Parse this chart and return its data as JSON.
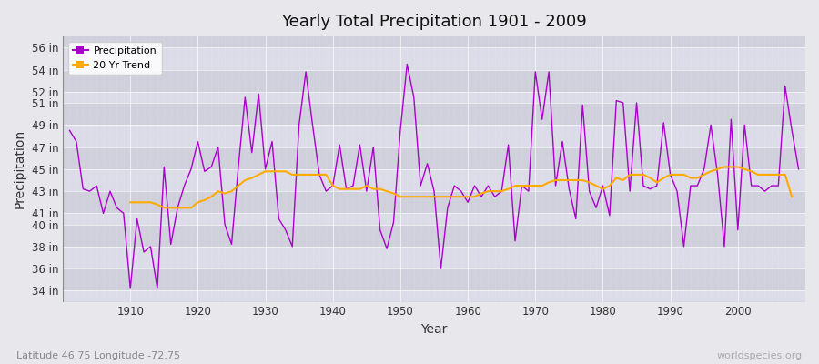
{
  "title": "Yearly Total Precipitation 1901 - 2009",
  "xlabel": "Year",
  "ylabel": "Precipitation",
  "watermark": "worldspecies.org",
  "subtitle": "Latitude 46.75 Longitude -72.75",
  "outer_bg": "#e8e8ec",
  "plot_bg_light": "#dcdce8",
  "plot_bg_dark": "#d0d0dc",
  "precip_color": "#aa00cc",
  "trend_color": "#ffaa00",
  "years": [
    1901,
    1902,
    1903,
    1904,
    1905,
    1906,
    1907,
    1908,
    1909,
    1910,
    1911,
    1912,
    1913,
    1914,
    1915,
    1916,
    1917,
    1918,
    1919,
    1920,
    1921,
    1922,
    1923,
    1924,
    1925,
    1926,
    1927,
    1928,
    1929,
    1930,
    1931,
    1932,
    1933,
    1934,
    1935,
    1936,
    1937,
    1938,
    1939,
    1940,
    1941,
    1942,
    1943,
    1944,
    1945,
    1946,
    1947,
    1948,
    1949,
    1950,
    1951,
    1952,
    1953,
    1954,
    1955,
    1956,
    1957,
    1958,
    1959,
    1960,
    1961,
    1962,
    1963,
    1964,
    1965,
    1966,
    1967,
    1968,
    1969,
    1970,
    1971,
    1972,
    1973,
    1974,
    1975,
    1976,
    1977,
    1978,
    1979,
    1980,
    1981,
    1982,
    1983,
    1984,
    1985,
    1986,
    1987,
    1988,
    1989,
    1990,
    1991,
    1992,
    1993,
    1994,
    1995,
    1996,
    1997,
    1998,
    1999,
    2000,
    2001,
    2002,
    2003,
    2004,
    2005,
    2006,
    2007,
    2008,
    2009
  ],
  "precip": [
    48.5,
    47.5,
    43.2,
    43.0,
    43.5,
    41.0,
    43.0,
    41.5,
    41.0,
    34.2,
    40.5,
    37.5,
    38.0,
    34.2,
    45.2,
    38.2,
    41.5,
    43.5,
    45.0,
    47.5,
    44.8,
    45.2,
    47.0,
    40.0,
    38.2,
    45.2,
    51.5,
    46.5,
    51.8,
    45.0,
    47.5,
    40.5,
    39.5,
    38.0,
    49.0,
    53.8,
    49.0,
    44.5,
    43.0,
    43.5,
    47.2,
    43.2,
    43.5,
    47.2,
    43.0,
    47.0,
    39.5,
    37.8,
    40.2,
    48.5,
    54.5,
    51.5,
    43.5,
    45.5,
    43.0,
    36.0,
    41.5,
    43.5,
    43.0,
    42.0,
    43.5,
    42.5,
    43.5,
    42.5,
    43.0,
    47.2,
    38.5,
    43.5,
    43.0,
    53.8,
    49.5,
    53.8,
    43.5,
    47.5,
    43.2,
    40.5,
    50.8,
    43.0,
    41.5,
    43.5,
    40.8,
    51.2,
    51.0,
    43.0,
    51.0,
    43.5,
    43.2,
    43.5,
    49.2,
    44.5,
    43.0,
    38.0,
    43.5,
    43.5,
    45.0,
    49.0,
    44.5,
    38.0,
    49.5,
    39.5,
    49.0,
    43.5,
    43.5,
    43.0,
    43.5,
    43.5,
    52.5,
    48.5,
    45.0
  ],
  "trend": [
    null,
    null,
    null,
    null,
    null,
    null,
    null,
    null,
    null,
    42.0,
    42.0,
    42.0,
    42.0,
    41.8,
    41.5,
    41.5,
    41.5,
    41.5,
    41.5,
    42.0,
    42.2,
    42.5,
    43.0,
    42.8,
    43.0,
    43.5,
    44.0,
    44.2,
    44.5,
    44.8,
    44.8,
    44.8,
    44.8,
    44.5,
    44.5,
    44.5,
    44.5,
    44.5,
    44.5,
    43.5,
    43.2,
    43.2,
    43.2,
    43.2,
    43.5,
    43.2,
    43.2,
    43.0,
    42.8,
    42.5,
    42.5,
    42.5,
    42.5,
    42.5,
    42.5,
    42.5,
    42.5,
    42.5,
    42.5,
    42.5,
    42.5,
    42.8,
    43.0,
    43.0,
    43.0,
    43.2,
    43.5,
    43.5,
    43.5,
    43.5,
    43.5,
    43.8,
    44.0,
    44.0,
    44.0,
    44.0,
    44.0,
    43.8,
    43.5,
    43.2,
    43.5,
    44.2,
    44.0,
    44.5,
    44.5,
    44.5,
    44.2,
    43.8,
    44.2,
    44.5,
    44.5,
    44.5,
    44.2,
    44.2,
    44.5,
    44.8,
    45.0,
    45.2,
    45.2,
    45.2,
    45.0,
    44.8,
    44.5,
    44.5,
    44.5,
    44.5,
    44.5,
    42.5
  ],
  "ylim": [
    33.0,
    57.0
  ],
  "ytick_vals": [
    34,
    36,
    38,
    40,
    41,
    43,
    45,
    47,
    49,
    51,
    52,
    54,
    56
  ],
  "xlim": [
    1900,
    2010
  ],
  "xticks": [
    1910,
    1920,
    1930,
    1940,
    1950,
    1960,
    1970,
    1980,
    1990,
    2000
  ]
}
